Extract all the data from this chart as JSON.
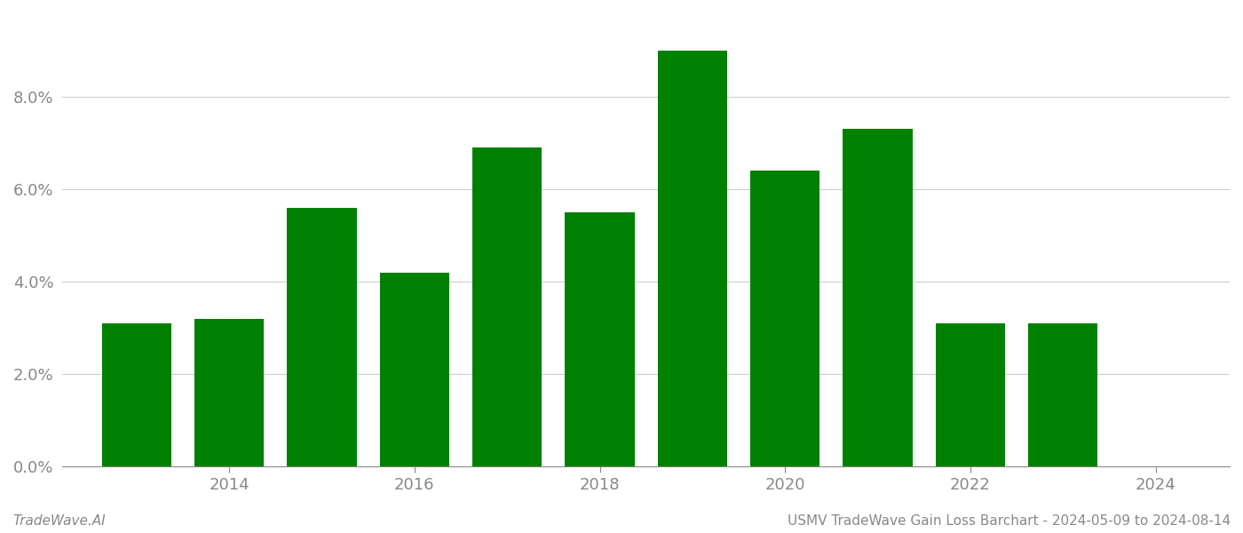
{
  "years": [
    2013,
    2014,
    2015,
    2016,
    2017,
    2018,
    2019,
    2020,
    2021,
    2022,
    2023
  ],
  "values": [
    0.031,
    0.032,
    0.056,
    0.042,
    0.069,
    0.055,
    0.09,
    0.064,
    0.073,
    0.031,
    0.031
  ],
  "bar_color": "#008000",
  "background_color": "#ffffff",
  "ylim": [
    0,
    0.098
  ],
  "yticks": [
    0.0,
    0.02,
    0.04,
    0.06,
    0.08
  ],
  "xtick_labels": [
    "2014",
    "2016",
    "2018",
    "2020",
    "2022",
    "2024"
  ],
  "xtick_positions": [
    2014,
    2016,
    2018,
    2020,
    2022,
    2024
  ],
  "grid_color": "#cccccc",
  "title": "USMV TradeWave Gain Loss Barchart - 2024-05-09 to 2024-08-14",
  "watermark": "TradeWave.AI",
  "title_fontsize": 11,
  "watermark_fontsize": 11,
  "axis_label_color": "#888888",
  "bar_width": 0.75
}
